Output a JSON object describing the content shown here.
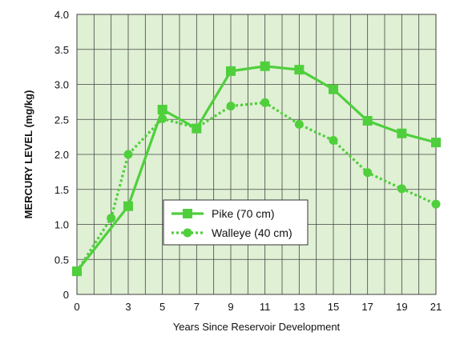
{
  "chart_data": {
    "type": "line",
    "xlabel": "Years Since Reservoir Development",
    "ylabel": "MERCURY LEVEL (mg/kg)",
    "xlim": [
      0,
      21
    ],
    "ylim": [
      0,
      4.0
    ],
    "x_ticks": [
      "0",
      "3",
      "5",
      "7",
      "9",
      "11",
      "13",
      "15",
      "17",
      "19",
      "21"
    ],
    "y_ticks": [
      "0",
      "0.5",
      "1.0",
      "1.5",
      "2.0",
      "2.5",
      "3.0",
      "3.5",
      "4.0"
    ],
    "grid": true,
    "legend_position": "center",
    "series": [
      {
        "name": "Pike (70 cm)",
        "style": "solid",
        "marker": "square",
        "color": "#4fcf3c",
        "x": [
          0,
          3,
          5,
          7,
          9,
          11,
          13,
          15,
          17,
          19,
          21
        ],
        "values": [
          0.33,
          1.26,
          2.64,
          2.37,
          3.19,
          3.26,
          3.21,
          2.93,
          2.48,
          2.3,
          2.17
        ]
      },
      {
        "name": "Walleye (40 cm)",
        "style": "dotted",
        "marker": "circle",
        "color": "#4fcf3c",
        "x": [
          0,
          2,
          3,
          5,
          7,
          9,
          11,
          13,
          15,
          17,
          19,
          21
        ],
        "values": [
          0.33,
          1.09,
          2.0,
          2.51,
          2.38,
          2.69,
          2.74,
          2.43,
          2.2,
          1.74,
          1.51,
          1.29
        ]
      }
    ],
    "colors": {
      "plot_background": "#dff0d4",
      "grid": "#444444",
      "series": "#4fcf3c"
    }
  }
}
